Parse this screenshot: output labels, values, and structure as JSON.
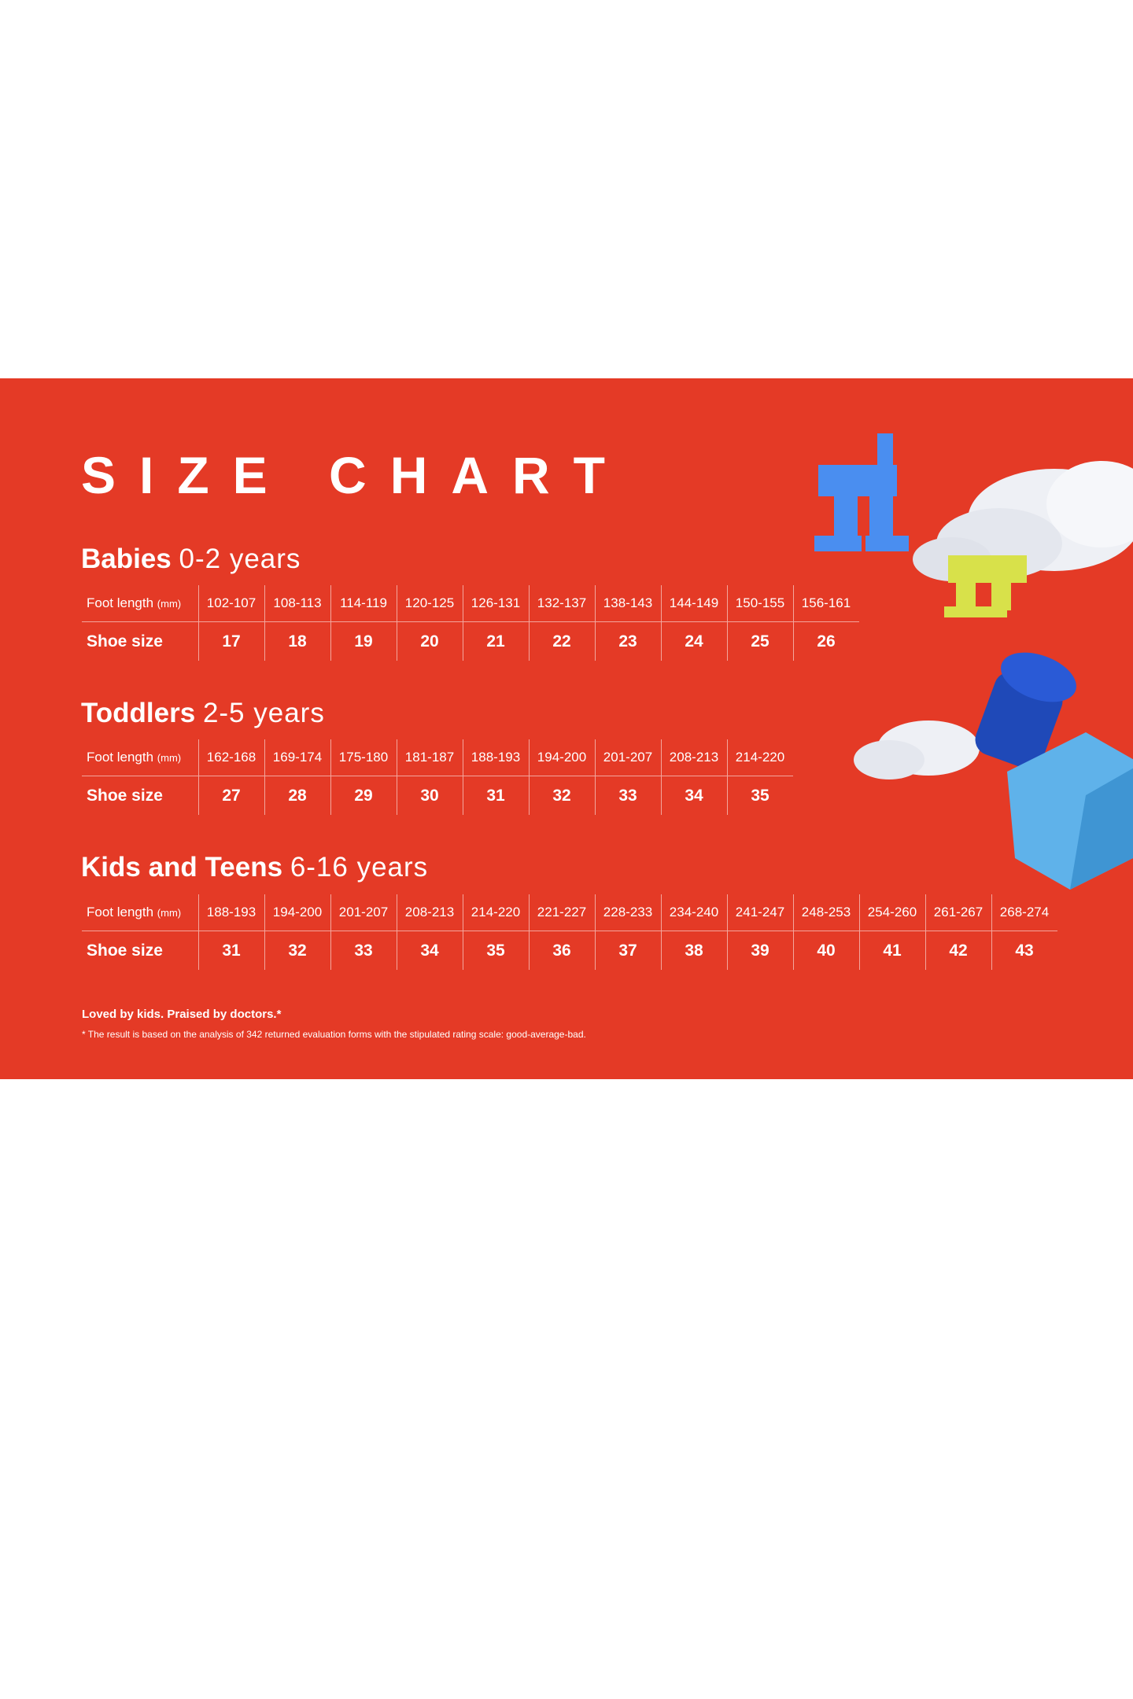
{
  "title": "SIZE CHART",
  "colors": {
    "background": "#e43a26",
    "text": "#ffffff"
  },
  "row_labels": {
    "foot_length": "Foot length",
    "foot_unit": "(mm)",
    "shoe_size": "Shoe size"
  },
  "sections": [
    {
      "name": "Babies",
      "ages": "0-2 years",
      "foot_length": [
        "102-107",
        "108-113",
        "114-119",
        "120-125",
        "126-131",
        "132-137",
        "138-143",
        "144-149",
        "150-155",
        "156-161"
      ],
      "shoe_size": [
        "17",
        "18",
        "19",
        "20",
        "21",
        "22",
        "23",
        "24",
        "25",
        "26"
      ]
    },
    {
      "name": "Toddlers",
      "ages": "2-5 years",
      "foot_length": [
        "162-168",
        "169-174",
        "175-180",
        "181-187",
        "188-193",
        "194-200",
        "201-207",
        "208-213",
        "214-220"
      ],
      "shoe_size": [
        "27",
        "28",
        "29",
        "30",
        "31",
        "32",
        "33",
        "34",
        "35"
      ]
    },
    {
      "name": "Kids and Teens",
      "ages": "6-16 years",
      "foot_length": [
        "188-193",
        "194-200",
        "201-207",
        "208-213",
        "214-220",
        "221-227",
        "228-233",
        "234-240",
        "241-247",
        "248-253",
        "254-260",
        "261-267",
        "268-274"
      ],
      "shoe_size": [
        "31",
        "32",
        "33",
        "34",
        "35",
        "36",
        "37",
        "38",
        "39",
        "40",
        "41",
        "42",
        "43"
      ]
    }
  ],
  "footer": {
    "tagline": "Loved by kids. Praised by doctors.*",
    "note": "* The result is based on the analysis of 342 returned evaluation forms with the stipulated rating scale: good-average-bad."
  }
}
